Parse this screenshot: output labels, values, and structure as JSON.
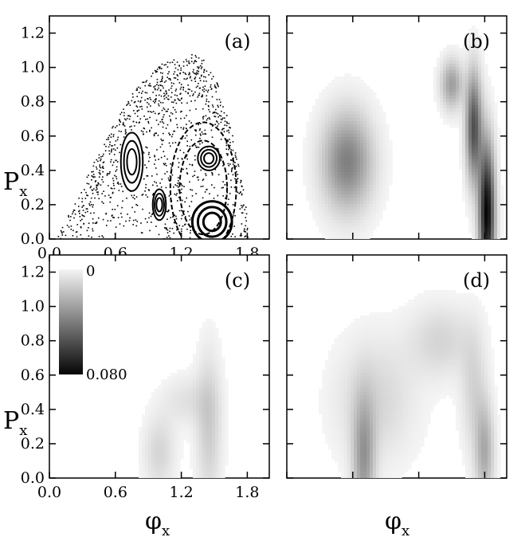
{
  "chart_data": [
    {
      "panel": "(a)",
      "type": "scatter",
      "xlim": [
        0.0,
        2.0
      ],
      "ylim": [
        0.0,
        1.3
      ],
      "x_ticks": [
        "0.0",
        "0.6",
        "1.2",
        "1.8"
      ],
      "y_ticks": [
        "0.0",
        "0.2",
        "0.4",
        "0.6",
        "0.8",
        "1.0",
        "1.2"
      ],
      "ylabel": "P",
      "ylabel_sub": "x",
      "boundary": {
        "x": [
          0.05,
          0.2,
          0.4,
          0.6,
          0.8,
          1.0,
          1.2,
          1.3,
          1.4,
          1.5,
          1.6,
          1.7,
          1.78,
          1.82
        ],
        "y": [
          0.0,
          0.18,
          0.45,
          0.7,
          0.9,
          1.02,
          1.07,
          1.08,
          1.05,
          0.95,
          0.78,
          0.5,
          0.22,
          0.0
        ]
      },
      "islands": [
        {
          "cx": 1.48,
          "cy": 0.1,
          "rx": 0.18,
          "ry": 0.12
        },
        {
          "cx": 1.45,
          "cy": 0.47,
          "rx": 0.1,
          "ry": 0.07
        },
        {
          "cx": 0.75,
          "cy": 0.45,
          "rx": 0.1,
          "ry": 0.17
        },
        {
          "cx": 1.0,
          "cy": 0.2,
          "rx": 0.06,
          "ry": 0.09
        },
        {
          "cx": 1.4,
          "cy": 0.3,
          "rx": 0.3,
          "ry": 0.38
        }
      ],
      "grid": false,
      "legend": "none"
    },
    {
      "panel": "(b)",
      "type": "heatmap",
      "xlim": [
        0.0,
        2.0
      ],
      "ylim": [
        0.0,
        1.3
      ],
      "blobs": [
        {
          "cx": 0.55,
          "cy": 0.45,
          "sx": 0.16,
          "sy": 0.2,
          "amp": 0.04
        },
        {
          "cx": 1.82,
          "cy": 0.15,
          "sx": 0.05,
          "sy": 0.28,
          "amp": 0.08
        },
        {
          "cx": 1.7,
          "cy": 0.65,
          "sx": 0.05,
          "sy": 0.22,
          "amp": 0.055
        },
        {
          "cx": 1.5,
          "cy": 0.9,
          "sx": 0.07,
          "sy": 0.1,
          "amp": 0.03
        }
      ]
    },
    {
      "panel": "(c)",
      "type": "heatmap",
      "xlim": [
        0.0,
        2.0
      ],
      "ylim": [
        0.0,
        1.3
      ],
      "x_ticks": [
        "0.0",
        "0.6",
        "1.2",
        "1.8"
      ],
      "y_ticks": [
        "0.0",
        "0.2",
        "0.4",
        "0.6",
        "0.8",
        "1.0",
        "1.2"
      ],
      "xlabel": "φ",
      "xlabel_sub": "x",
      "ylabel": "P",
      "ylabel_sub": "x",
      "colorbar": {
        "min_label": "0",
        "max_label": "0.080",
        "min": 0,
        "max": 0.08
      },
      "blobs": [
        {
          "cx": 1.0,
          "cy": 0.15,
          "sx": 0.1,
          "sy": 0.15,
          "amp": 0.012
        },
        {
          "cx": 1.45,
          "cy": 0.3,
          "sx": 0.08,
          "sy": 0.3,
          "amp": 0.015
        },
        {
          "cx": 1.25,
          "cy": 0.45,
          "sx": 0.15,
          "sy": 0.1,
          "amp": 0.008
        }
      ]
    },
    {
      "panel": "(d)",
      "type": "heatmap",
      "xlim": [
        0.0,
        2.0
      ],
      "ylim": [
        0.0,
        1.3
      ],
      "xlabel": "φ",
      "xlabel_sub": "x",
      "blobs": [
        {
          "cx": 0.7,
          "cy": 0.1,
          "sx": 0.07,
          "sy": 0.25,
          "amp": 0.03
        },
        {
          "cx": 1.8,
          "cy": 0.15,
          "sx": 0.06,
          "sy": 0.2,
          "amp": 0.025
        },
        {
          "cx": 0.8,
          "cy": 0.45,
          "sx": 0.25,
          "sy": 0.25,
          "amp": 0.012
        },
        {
          "cx": 1.4,
          "cy": 0.8,
          "sx": 0.2,
          "sy": 0.15,
          "amp": 0.012
        },
        {
          "cx": 1.7,
          "cy": 0.5,
          "sx": 0.08,
          "sy": 0.25,
          "amp": 0.012
        }
      ]
    }
  ]
}
